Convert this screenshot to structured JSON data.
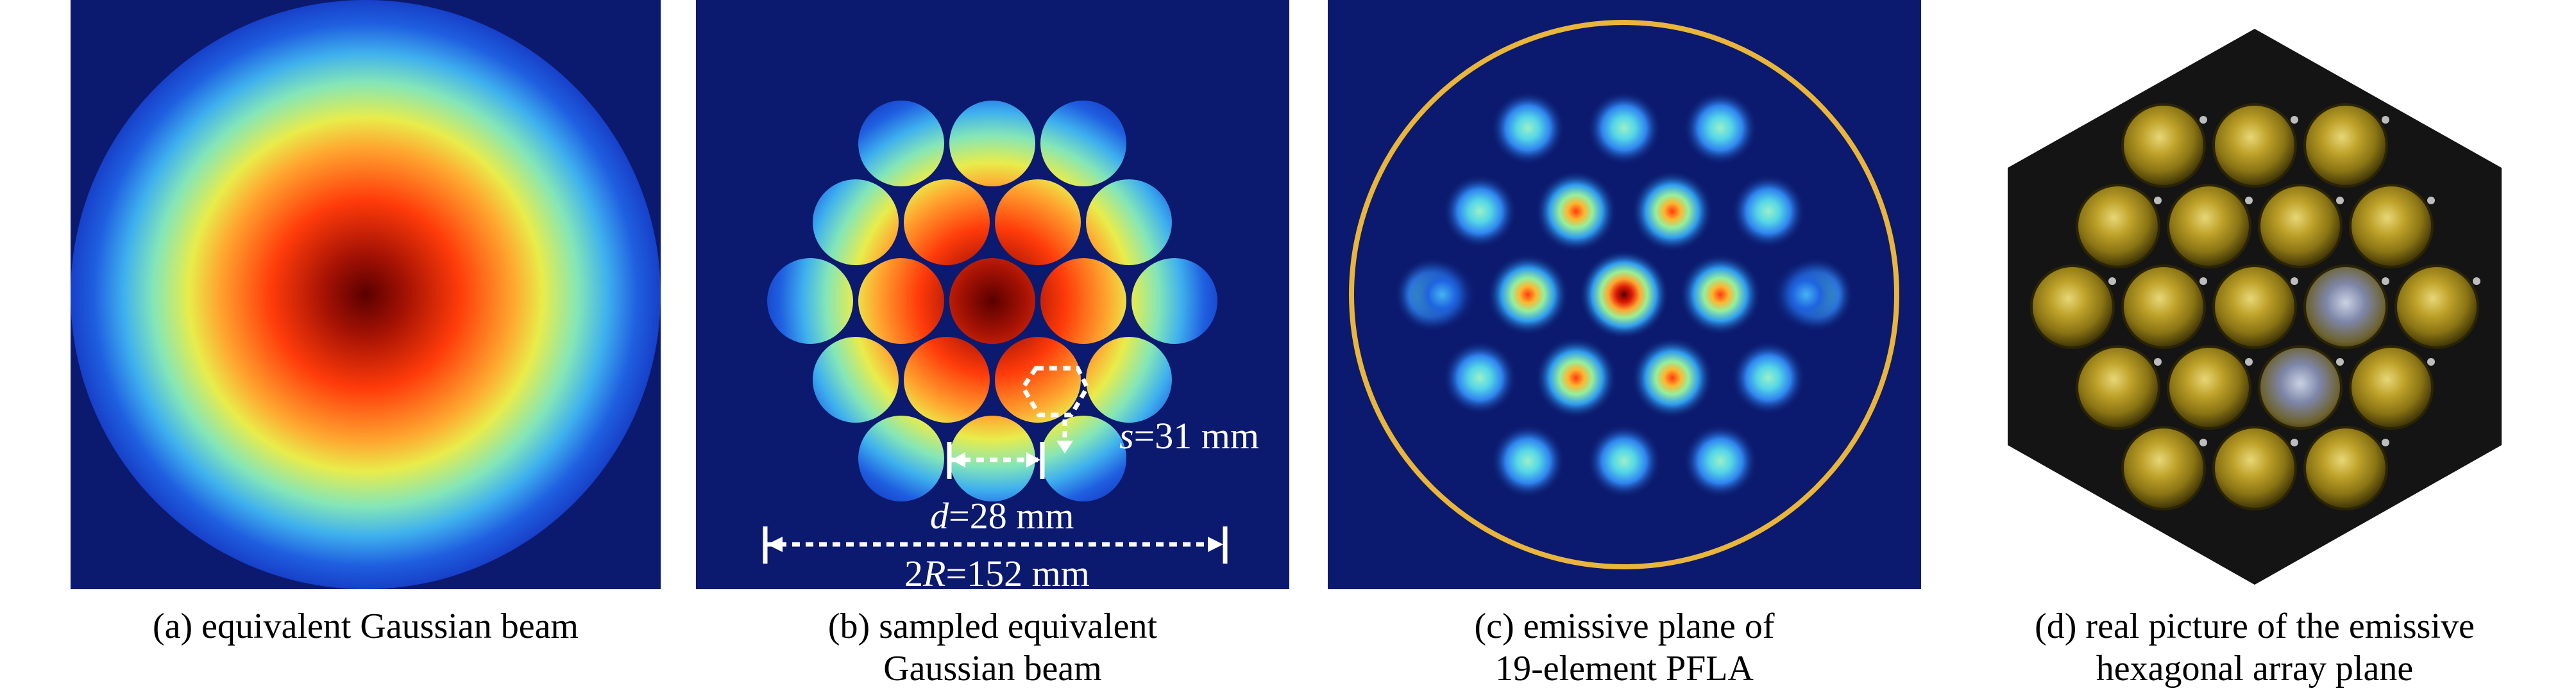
{
  "figure": {
    "panels": [
      {
        "id": "a",
        "caption": "(a) equivalent Gaussian beam"
      },
      {
        "id": "b",
        "caption": "(b) sampled equivalent\nGaussian beam",
        "annotations": {
          "s_var": "s",
          "s_val": "=31 mm",
          "d_var": "d",
          "d_val": "=28 mm",
          "R_prefix": "2",
          "R_var": "R",
          "R_val": "=152 mm"
        }
      },
      {
        "id": "c",
        "caption": "(c) emissive plane of\n19-element PFLA"
      },
      {
        "id": "d",
        "caption": "(d) real picture of the emissive\nhexagonal array plane"
      }
    ],
    "colors": {
      "background": "#0b1a6e",
      "ring": "#e9b53a",
      "hexagon": "#141414",
      "lens": "#b8a020"
    }
  }
}
